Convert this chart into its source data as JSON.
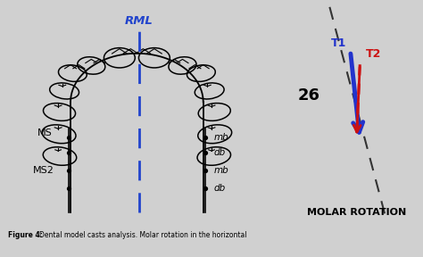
{
  "bg_color": "#ffffff",
  "outer_bg": "#d0d0d0",
  "title_text": "Figure 4: Dental model casts analysis. Molar rotation in the horizontal",
  "rml_label": "RML",
  "ms_label": "MS",
  "ms2_label": "MS2",
  "mb1_label": "mb",
  "db1_label": "db",
  "mb2_label": "mb",
  "db2_label": "db",
  "t1_label": "T1",
  "t2_label": "T2",
  "num26_label": "26",
  "molar_rotation_label": "MOLAR ROTATION",
  "arrow_blue_color": "#2233cc",
  "arrow_red_color": "#cc1111",
  "dashed_line_color": "#333333",
  "rml_color": "#2244cc"
}
